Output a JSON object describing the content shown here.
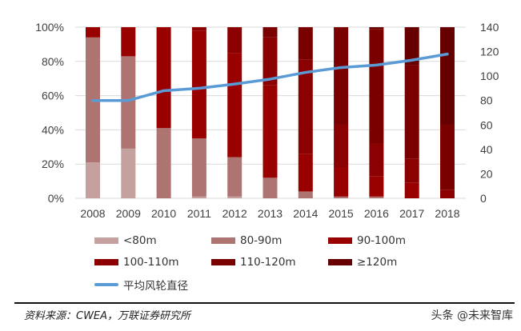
{
  "chart_data": {
    "type": "bar",
    "stacked": true,
    "percent_stacked": true,
    "categories": [
      "2008",
      "2009",
      "2010",
      "2011",
      "2012",
      "2013",
      "2014",
      "2015",
      "2016",
      "2017",
      "2018"
    ],
    "series": [
      {
        "name": "<80m",
        "color": "#c4a09e",
        "values": [
          21,
          29,
          0,
          1,
          1,
          0,
          0,
          0,
          0,
          0,
          0
        ]
      },
      {
        "name": "80-90m",
        "color": "#ad7471",
        "values": [
          73,
          54,
          41,
          34,
          23,
          12,
          4,
          1,
          1,
          0,
          0
        ]
      },
      {
        "name": "90-100m",
        "color": "#990000",
        "values": [
          6,
          17,
          59,
          63,
          61,
          54,
          22,
          17,
          12,
          9,
          0
        ]
      },
      {
        "name": "100-110m",
        "color": "#8b0000",
        "values": [
          0,
          0,
          0,
          2,
          15,
          28,
          55,
          25,
          19,
          14,
          5
        ]
      },
      {
        "name": "110-120m",
        "color": "#7a0000",
        "values": [
          0,
          0,
          0,
          0,
          0,
          6,
          19,
          57,
          67,
          55,
          38
        ]
      },
      {
        "name": "≥120m",
        "color": "#660000",
        "values": [
          0,
          0,
          0,
          0,
          0,
          0,
          0,
          0,
          1,
          22,
          57
        ]
      }
    ],
    "line_series": {
      "name": "平均风轮直径",
      "color": "#5b9bd5",
      "axis": "right",
      "values": [
        80,
        80,
        88,
        90,
        93.5,
        97.5,
        103,
        107,
        109,
        113,
        118
      ]
    },
    "left_axis": {
      "ylim": [
        0,
        100
      ],
      "ticks": [
        "0%",
        "20%",
        "40%",
        "60%",
        "80%",
        "100%"
      ]
    },
    "right_axis": {
      "ylim": [
        0,
        140
      ],
      "ticks": [
        "0",
        "20",
        "40",
        "60",
        "80",
        "100",
        "120",
        "140"
      ]
    },
    "grid": true,
    "legend_position": "bottom"
  },
  "footer": {
    "source": "资料来源：CWEA，万联证券研究所",
    "watermark": "头条 @未来智库"
  }
}
